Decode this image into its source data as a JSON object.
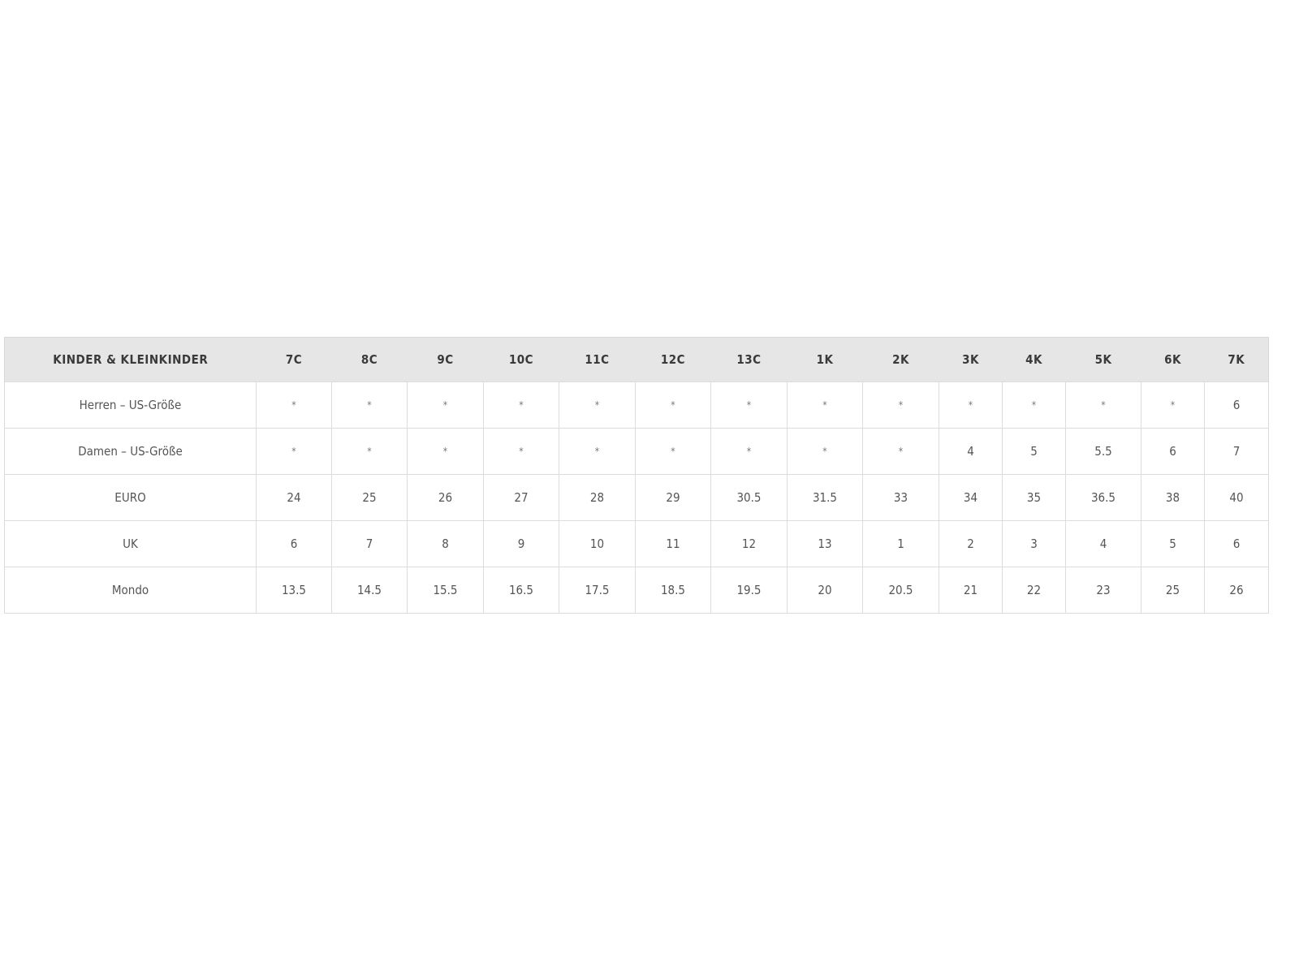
{
  "table": {
    "header_label": "KINDER & KLEINKINDER",
    "columns": [
      "7C",
      "8C",
      "9C",
      "10C",
      "11C",
      "12C",
      "13C",
      "1K",
      "2K",
      "3K",
      "4K",
      "5K",
      "6K",
      "7K"
    ],
    "rows": [
      {
        "label": "Herren – US-Größe",
        "values": [
          "*",
          "*",
          "*",
          "*",
          "*",
          "*",
          "*",
          "*",
          "*",
          "*",
          "*",
          "*",
          "*",
          "6"
        ]
      },
      {
        "label": "Damen – US-Größe",
        "values": [
          "*",
          "*",
          "*",
          "*",
          "*",
          "*",
          "*",
          "*",
          "*",
          "4",
          "5",
          "5.5",
          "6",
          "7"
        ]
      },
      {
        "label": "EURO",
        "values": [
          "24",
          "25",
          "26",
          "27",
          "28",
          "29",
          "30.5",
          "31.5",
          "33",
          "34",
          "35",
          "36.5",
          "38",
          "40"
        ]
      },
      {
        "label": "UK",
        "values": [
          "6",
          "7",
          "8",
          "9",
          "10",
          "11",
          "12",
          "13",
          "1",
          "2",
          "3",
          "4",
          "5",
          "6"
        ]
      },
      {
        "label": "Mondo",
        "values": [
          "13.5",
          "14.5",
          "15.5",
          "16.5",
          "17.5",
          "18.5",
          "19.5",
          "20",
          "20.5",
          "21",
          "22",
          "23",
          "25",
          "26"
        ]
      }
    ]
  },
  "colors": {
    "header_bg": "#e6e6e6",
    "border": "#dcdcdc",
    "text": "#555555"
  }
}
